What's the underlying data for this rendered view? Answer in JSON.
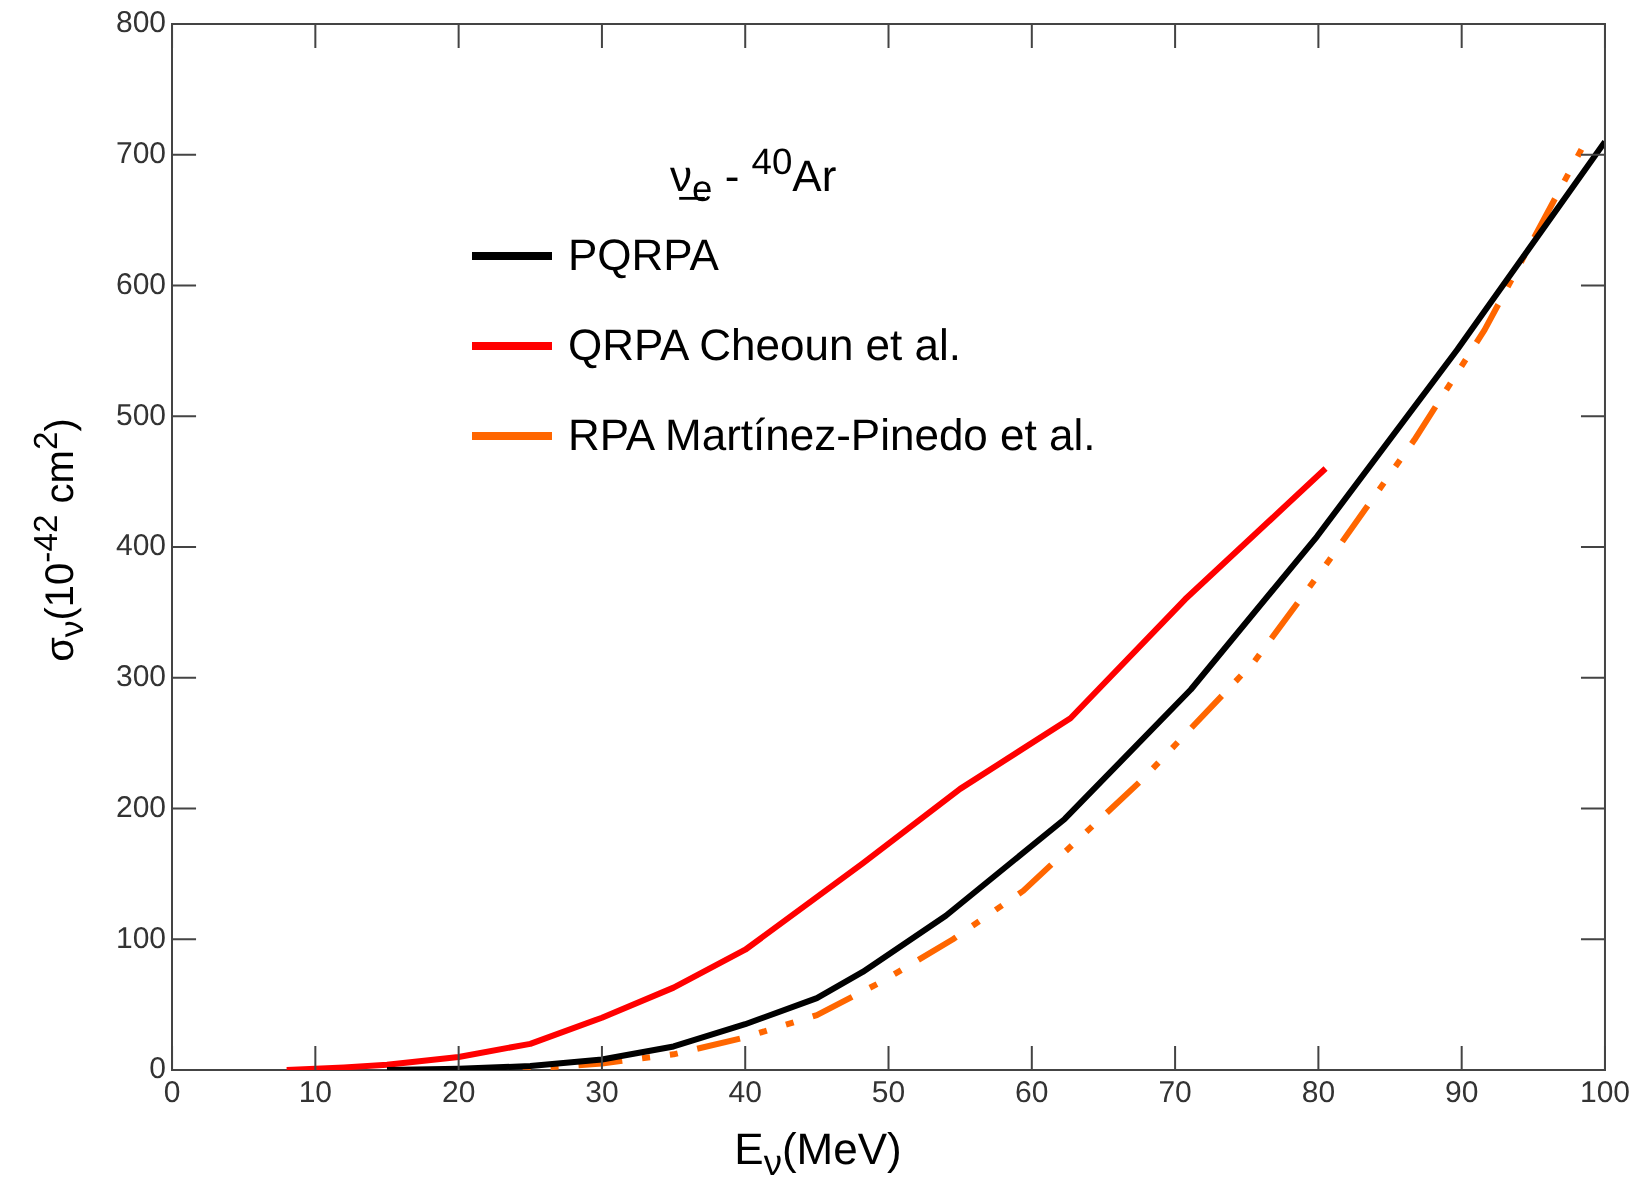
{
  "chart_data": {
    "type": "line",
    "title": "ν̲$_{e}$ - $^{40}$Ar",
    "xlabel": "E$_{ν}$(MeV)",
    "ylabel": "σ$_{ν}$(10$^{-42}$ cm$^{2}$)",
    "xlim": [
      0,
      100
    ],
    "xticks": [
      0,
      10,
      20,
      30,
      40,
      50,
      60,
      70,
      80,
      90,
      100
    ],
    "ylim": [
      0,
      800
    ],
    "yticks": [
      0,
      100,
      200,
      300,
      400,
      500,
      600,
      700,
      800
    ],
    "grid": false,
    "legend": "top left",
    "marker": "none",
    "series": [
      {
        "name": "PQRPA",
        "color": "#000000",
        "line_style": "solid",
        "x": [
          15,
          20,
          25,
          30,
          35,
          40,
          45,
          48.2,
          54,
          62.3,
          71.1,
          79.9,
          89.7,
          100
        ],
        "values": [
          0,
          1,
          3,
          8,
          18,
          35,
          55,
          75,
          118,
          192,
          291,
          408,
          551,
          710
        ]
      },
      {
        "name": "QRPA Cheoun et al.",
        "color": "#ff0000",
        "line_style": "solid",
        "x": [
          8,
          12,
          15,
          20,
          25,
          30,
          35,
          40,
          48.2,
          55,
          62.7,
          70.7,
          80.5
        ],
        "values": [
          0,
          2,
          4,
          10,
          20,
          40,
          63,
          92,
          158,
          215,
          269,
          360,
          460
        ]
      },
      {
        "name": "RPA Martínez-Pinedo et al.",
        "color": "#ff6600",
        "line_style": "dashed",
        "x": [
          20,
          25,
          30,
          35,
          40,
          45,
          49.6,
          54.5,
          59.4,
          67.7,
          75.5,
          80.5,
          86.7,
          91.6,
          98.4
        ],
        "values": [
          0,
          1,
          5,
          12,
          25,
          42,
          68,
          100,
          137,
          222,
          312,
          386,
          482,
          566,
          705
        ]
      }
    ]
  }
}
